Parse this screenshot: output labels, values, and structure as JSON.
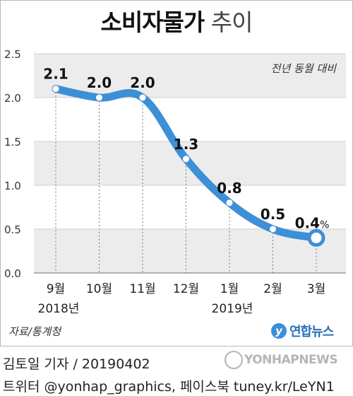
{
  "header": {
    "title_main": "소비자물가",
    "title_sub": "추이",
    "note": "전년 동월 대비"
  },
  "chart_data": {
    "type": "line",
    "categories": [
      "9월",
      "10월",
      "11월",
      "12월",
      "1월",
      "2월",
      "3월"
    ],
    "values": [
      2.1,
      2.0,
      2.0,
      1.3,
      0.8,
      0.5,
      0.4
    ],
    "value_labels": [
      "2.1",
      "2.0",
      "2.0",
      "1.3",
      "0.8",
      "0.5",
      "0.4"
    ],
    "last_value_unit": "%",
    "year_labels": [
      {
        "label": "2018년",
        "category": "9월"
      },
      {
        "label": "2019년",
        "category": "1월"
      }
    ],
    "ylim": [
      0,
      2.5
    ],
    "yticks": [
      "0.0",
      "0.5",
      "1.0",
      "1.5",
      "2.0",
      "2.5"
    ],
    "grid": "alternating horizontal bands",
    "line_color": "#3d8fd6"
  },
  "footer": {
    "source": "자료/통계청",
    "logo_glyph": "y",
    "logo_text": "연합뉴스",
    "byline": "김토일 기자 / 20190402",
    "social": "트위터 @yonhap_graphics, 페이스북 tuney.kr/LeYN1",
    "watermark": "YONHAPNEWS"
  }
}
